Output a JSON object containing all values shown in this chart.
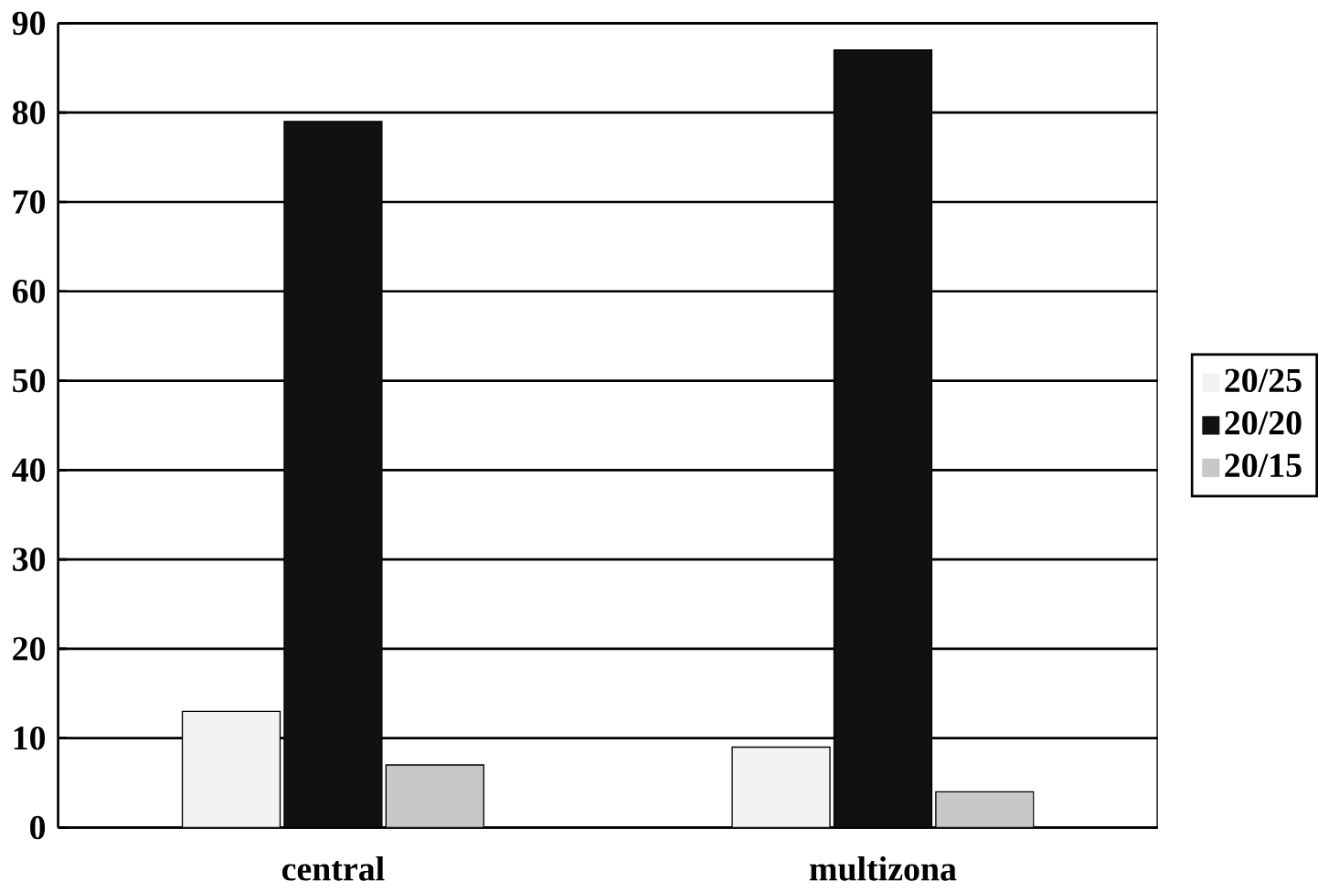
{
  "chart_data": {
    "type": "bar",
    "categories": [
      "central",
      "multizona"
    ],
    "series": [
      {
        "name": "20/25",
        "color": "#f2f2f2",
        "values": [
          13,
          9
        ]
      },
      {
        "name": "20/20",
        "color": "#111111",
        "values": [
          79,
          87
        ]
      },
      {
        "name": "20/15",
        "color": "#c8c8c8",
        "values": [
          7,
          4
        ]
      }
    ],
    "ylim": [
      0,
      90
    ],
    "yticks": [
      0,
      10,
      20,
      30,
      40,
      50,
      60,
      70,
      80,
      90
    ],
    "grid": "y",
    "legend": "right"
  }
}
